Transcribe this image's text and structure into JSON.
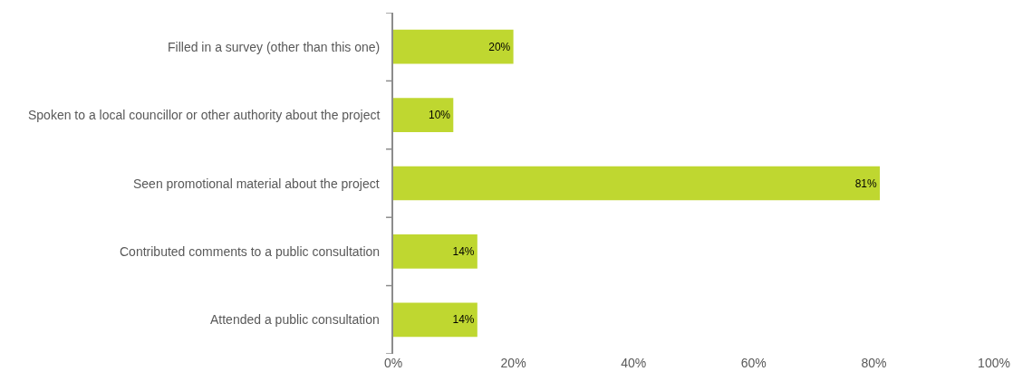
{
  "chart_data": {
    "type": "bar",
    "orientation": "horizontal",
    "categories": [
      "Filled in a survey (other than this one)",
      "Spoken to a local councillor or other authority about the project",
      "Seen promotional material about the project",
      "Contributed comments to a public consultation",
      "Attended a public consultation"
    ],
    "values": [
      20,
      10,
      81,
      14,
      14
    ],
    "value_labels": [
      "20%",
      "10%",
      "81%",
      "14%",
      "14%"
    ],
    "color": "#bfd730",
    "xlim": [
      0,
      100
    ],
    "xticks": [
      {
        "value": 0,
        "label": "0%"
      },
      {
        "value": 20,
        "label": "20%"
      },
      {
        "value": 40,
        "label": "40%"
      },
      {
        "value": 60,
        "label": "60%"
      },
      {
        "value": 80,
        "label": "80%"
      },
      {
        "value": 100,
        "label": "100%"
      }
    ],
    "grid": false
  }
}
